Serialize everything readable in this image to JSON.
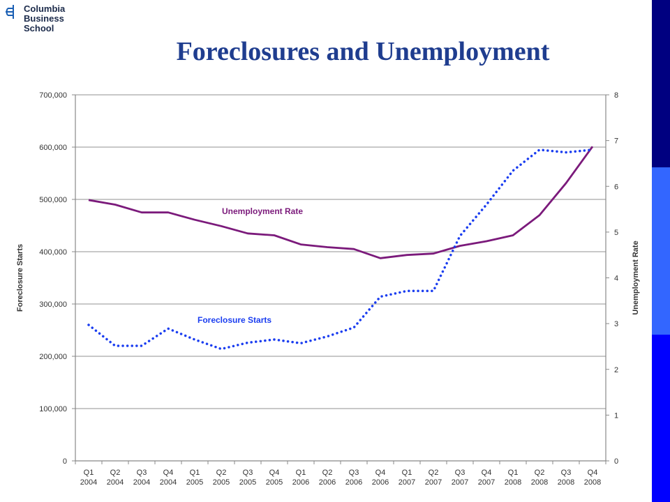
{
  "logo": {
    "line1": "Columbia",
    "line2": "Business",
    "line3": "School",
    "icon": "columbia-crown-icon"
  },
  "title": "Foreclosures and Unemployment",
  "colors": {
    "title": "#1f3d8f",
    "unemployment": "#7b1a7b",
    "foreclosure": "#1a3df0",
    "grid": "#b5b5b5",
    "sidebar": [
      "#000080",
      "#3366ff",
      "#0000ff"
    ]
  },
  "chart_data": {
    "type": "line",
    "categories": [
      "Q1\n2004",
      "Q2\n2004",
      "Q3\n2004",
      "Q4\n2004",
      "Q1\n2005",
      "Q2\n2005",
      "Q3\n2005",
      "Q4\n2005",
      "Q1\n2006",
      "Q2\n2006",
      "Q3\n2006",
      "Q4\n2006",
      "Q1\n2007",
      "Q2\n2007",
      "Q3\n2007",
      "Q4\n2007",
      "Q1\n2008",
      "Q2\n2008",
      "Q3\n2008",
      "Q4\n2008"
    ],
    "ylabel": "Foreclosure Starts",
    "y2label": "Unemployment Rate",
    "ylim": [
      0,
      700000
    ],
    "y2lim": [
      0,
      8
    ],
    "yticks": [
      "0",
      "100,000",
      "200,000",
      "300,000",
      "400,000",
      "500,000",
      "600,000",
      "700,000"
    ],
    "y2ticks": [
      "0",
      "1",
      "2",
      "3",
      "4",
      "5",
      "6",
      "7",
      "8"
    ],
    "grid": true,
    "series": [
      {
        "name": "Unemployment Rate",
        "axis": "right",
        "style": "solid",
        "values": [
          5.7,
          5.6,
          5.43,
          5.43,
          5.27,
          5.13,
          4.97,
          4.93,
          4.73,
          4.67,
          4.63,
          4.43,
          4.5,
          4.53,
          4.7,
          4.8,
          4.93,
          5.37,
          6.07,
          6.87
        ]
      },
      {
        "name": "Foreclosure Starts",
        "axis": "left",
        "style": "dotted",
        "values": [
          260000,
          220000,
          220000,
          253000,
          232000,
          214000,
          226000,
          232000,
          225000,
          238000,
          255000,
          314000,
          325000,
          325000,
          430000,
          490000,
          555000,
          595000,
          590000,
          595000
        ]
      }
    ]
  }
}
